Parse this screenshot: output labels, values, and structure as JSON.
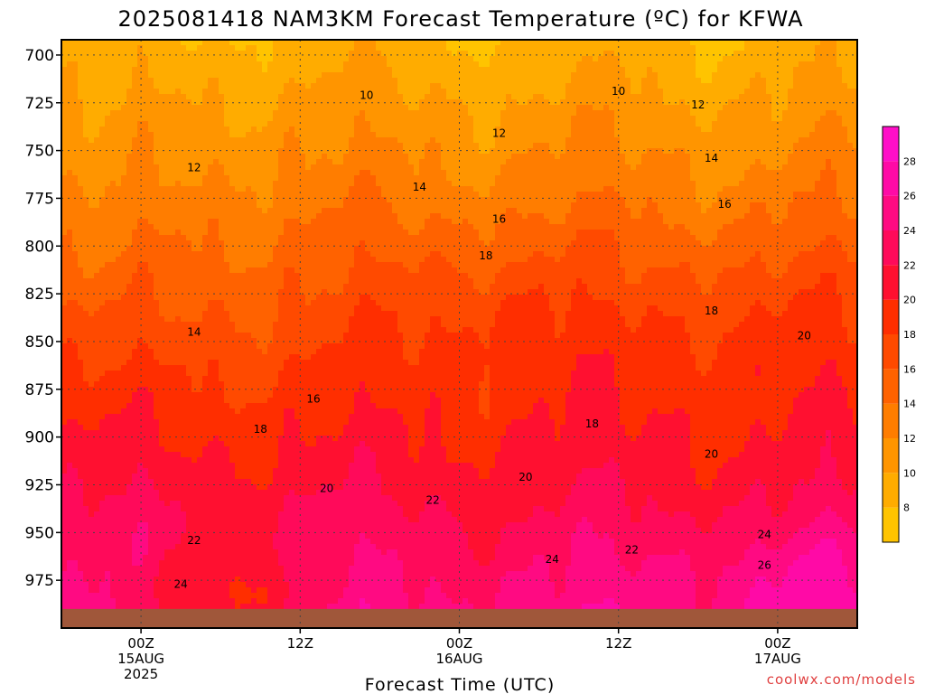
{
  "chart_data": {
    "type": "heatmap",
    "title": "2025081418 NAM3KM Forecast Temperature (ºC) for KFWA",
    "xlabel": "Forecast Time (UTC)",
    "ylabel": "",
    "y_ticks": [
      "700",
      "725",
      "750",
      "775",
      "800",
      "825",
      "850",
      "875",
      "900",
      "925",
      "950",
      "975"
    ],
    "y_values": [
      700,
      725,
      750,
      775,
      800,
      825,
      850,
      875,
      900,
      925,
      950,
      975
    ],
    "ylim": [
      1000,
      692
    ],
    "x_ticks": [
      {
        "hours": 6,
        "lines": [
          "00Z",
          "15AUG",
          "2025"
        ]
      },
      {
        "hours": 18,
        "lines": [
          "12Z"
        ]
      },
      {
        "hours": 30,
        "lines": [
          "00Z",
          "16AUG"
        ]
      },
      {
        "hours": 42,
        "lines": [
          "12Z"
        ]
      },
      {
        "hours": 54,
        "lines": [
          "00Z",
          "17AUG"
        ]
      }
    ],
    "x_hours_range": [
      0,
      60
    ],
    "grid": "dotted",
    "surface_pressure": 990,
    "contour_labels": [
      {
        "text": "10",
        "hours": 23,
        "p": 721
      },
      {
        "text": "10",
        "hours": 42,
        "p": 719
      },
      {
        "text": "12",
        "hours": 10,
        "p": 759
      },
      {
        "text": "12",
        "hours": 33,
        "p": 741
      },
      {
        "text": "12",
        "hours": 48,
        "p": 726
      },
      {
        "text": "14",
        "hours": 27,
        "p": 769
      },
      {
        "text": "14",
        "hours": 49,
        "p": 754
      },
      {
        "text": "14",
        "hours": 10,
        "p": 845
      },
      {
        "text": "16",
        "hours": 33,
        "p": 786
      },
      {
        "text": "16",
        "hours": 50,
        "p": 778
      },
      {
        "text": "16",
        "hours": 19,
        "p": 880
      },
      {
        "text": "18",
        "hours": 32,
        "p": 805
      },
      {
        "text": "18",
        "hours": 49,
        "p": 834
      },
      {
        "text": "18",
        "hours": 15,
        "p": 896
      },
      {
        "text": "18",
        "hours": 40,
        "p": 893
      },
      {
        "text": "20",
        "hours": 56,
        "p": 847
      },
      {
        "text": "20",
        "hours": 49,
        "p": 909
      },
      {
        "text": "20",
        "hours": 35,
        "p": 921
      },
      {
        "text": "20",
        "hours": 20,
        "p": 927
      },
      {
        "text": "22",
        "hours": 28,
        "p": 933
      },
      {
        "text": "22",
        "hours": 10,
        "p": 954
      },
      {
        "text": "22",
        "hours": 43,
        "p": 959
      },
      {
        "text": "24",
        "hours": 37,
        "p": 964
      },
      {
        "text": "24",
        "hours": 9,
        "p": 977
      },
      {
        "text": "24",
        "hours": 53,
        "p": 951
      },
      {
        "text": "26",
        "hours": 53,
        "p": 967
      }
    ],
    "colorbar": {
      "ticks": [
        "8",
        "10",
        "12",
        "14",
        "16",
        "18",
        "20",
        "22",
        "24",
        "26",
        "28"
      ],
      "values": [
        8,
        10,
        12,
        14,
        16,
        18,
        20,
        22,
        24,
        26,
        28
      ],
      "range": [
        6,
        30
      ],
      "colors": [
        "#ffc400",
        "#ffac00",
        "#ff9500",
        "#ff7d00",
        "#ff6200",
        "#ff4a00",
        "#ff2e00",
        "#ff1030",
        "#ff0a5a",
        "#ff0a82",
        "#ff0aa6",
        "#ff0fc8"
      ]
    },
    "colors": {
      "ground": "#a0573a",
      "grid": "#444444",
      "contour": "#000000"
    }
  },
  "credit": "coolwx.com/models"
}
